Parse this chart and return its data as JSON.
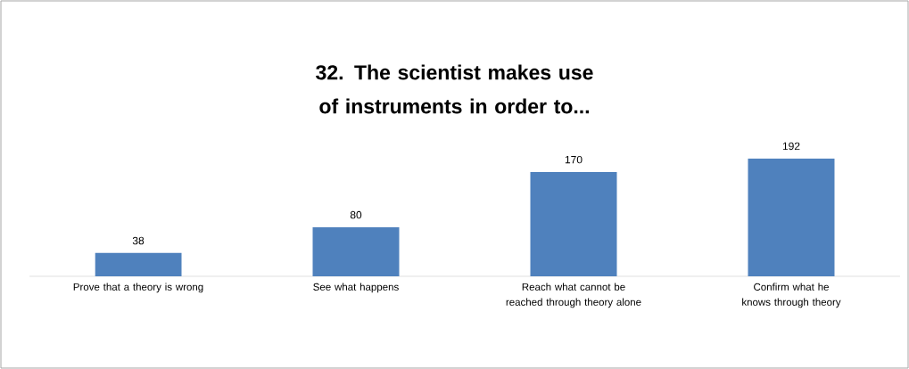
{
  "chart_data": {
    "type": "bar",
    "title": "32. The scientist makes use of instruments in order to...",
    "categories": [
      "Prove that a theory is wrong",
      "See what happens",
      "Reach what cannot be reached through theory alone",
      "Confirm what he knows through theory"
    ],
    "values": [
      38,
      80,
      170,
      192
    ],
    "color": "#4f81bd",
    "data_labels": true
  }
}
